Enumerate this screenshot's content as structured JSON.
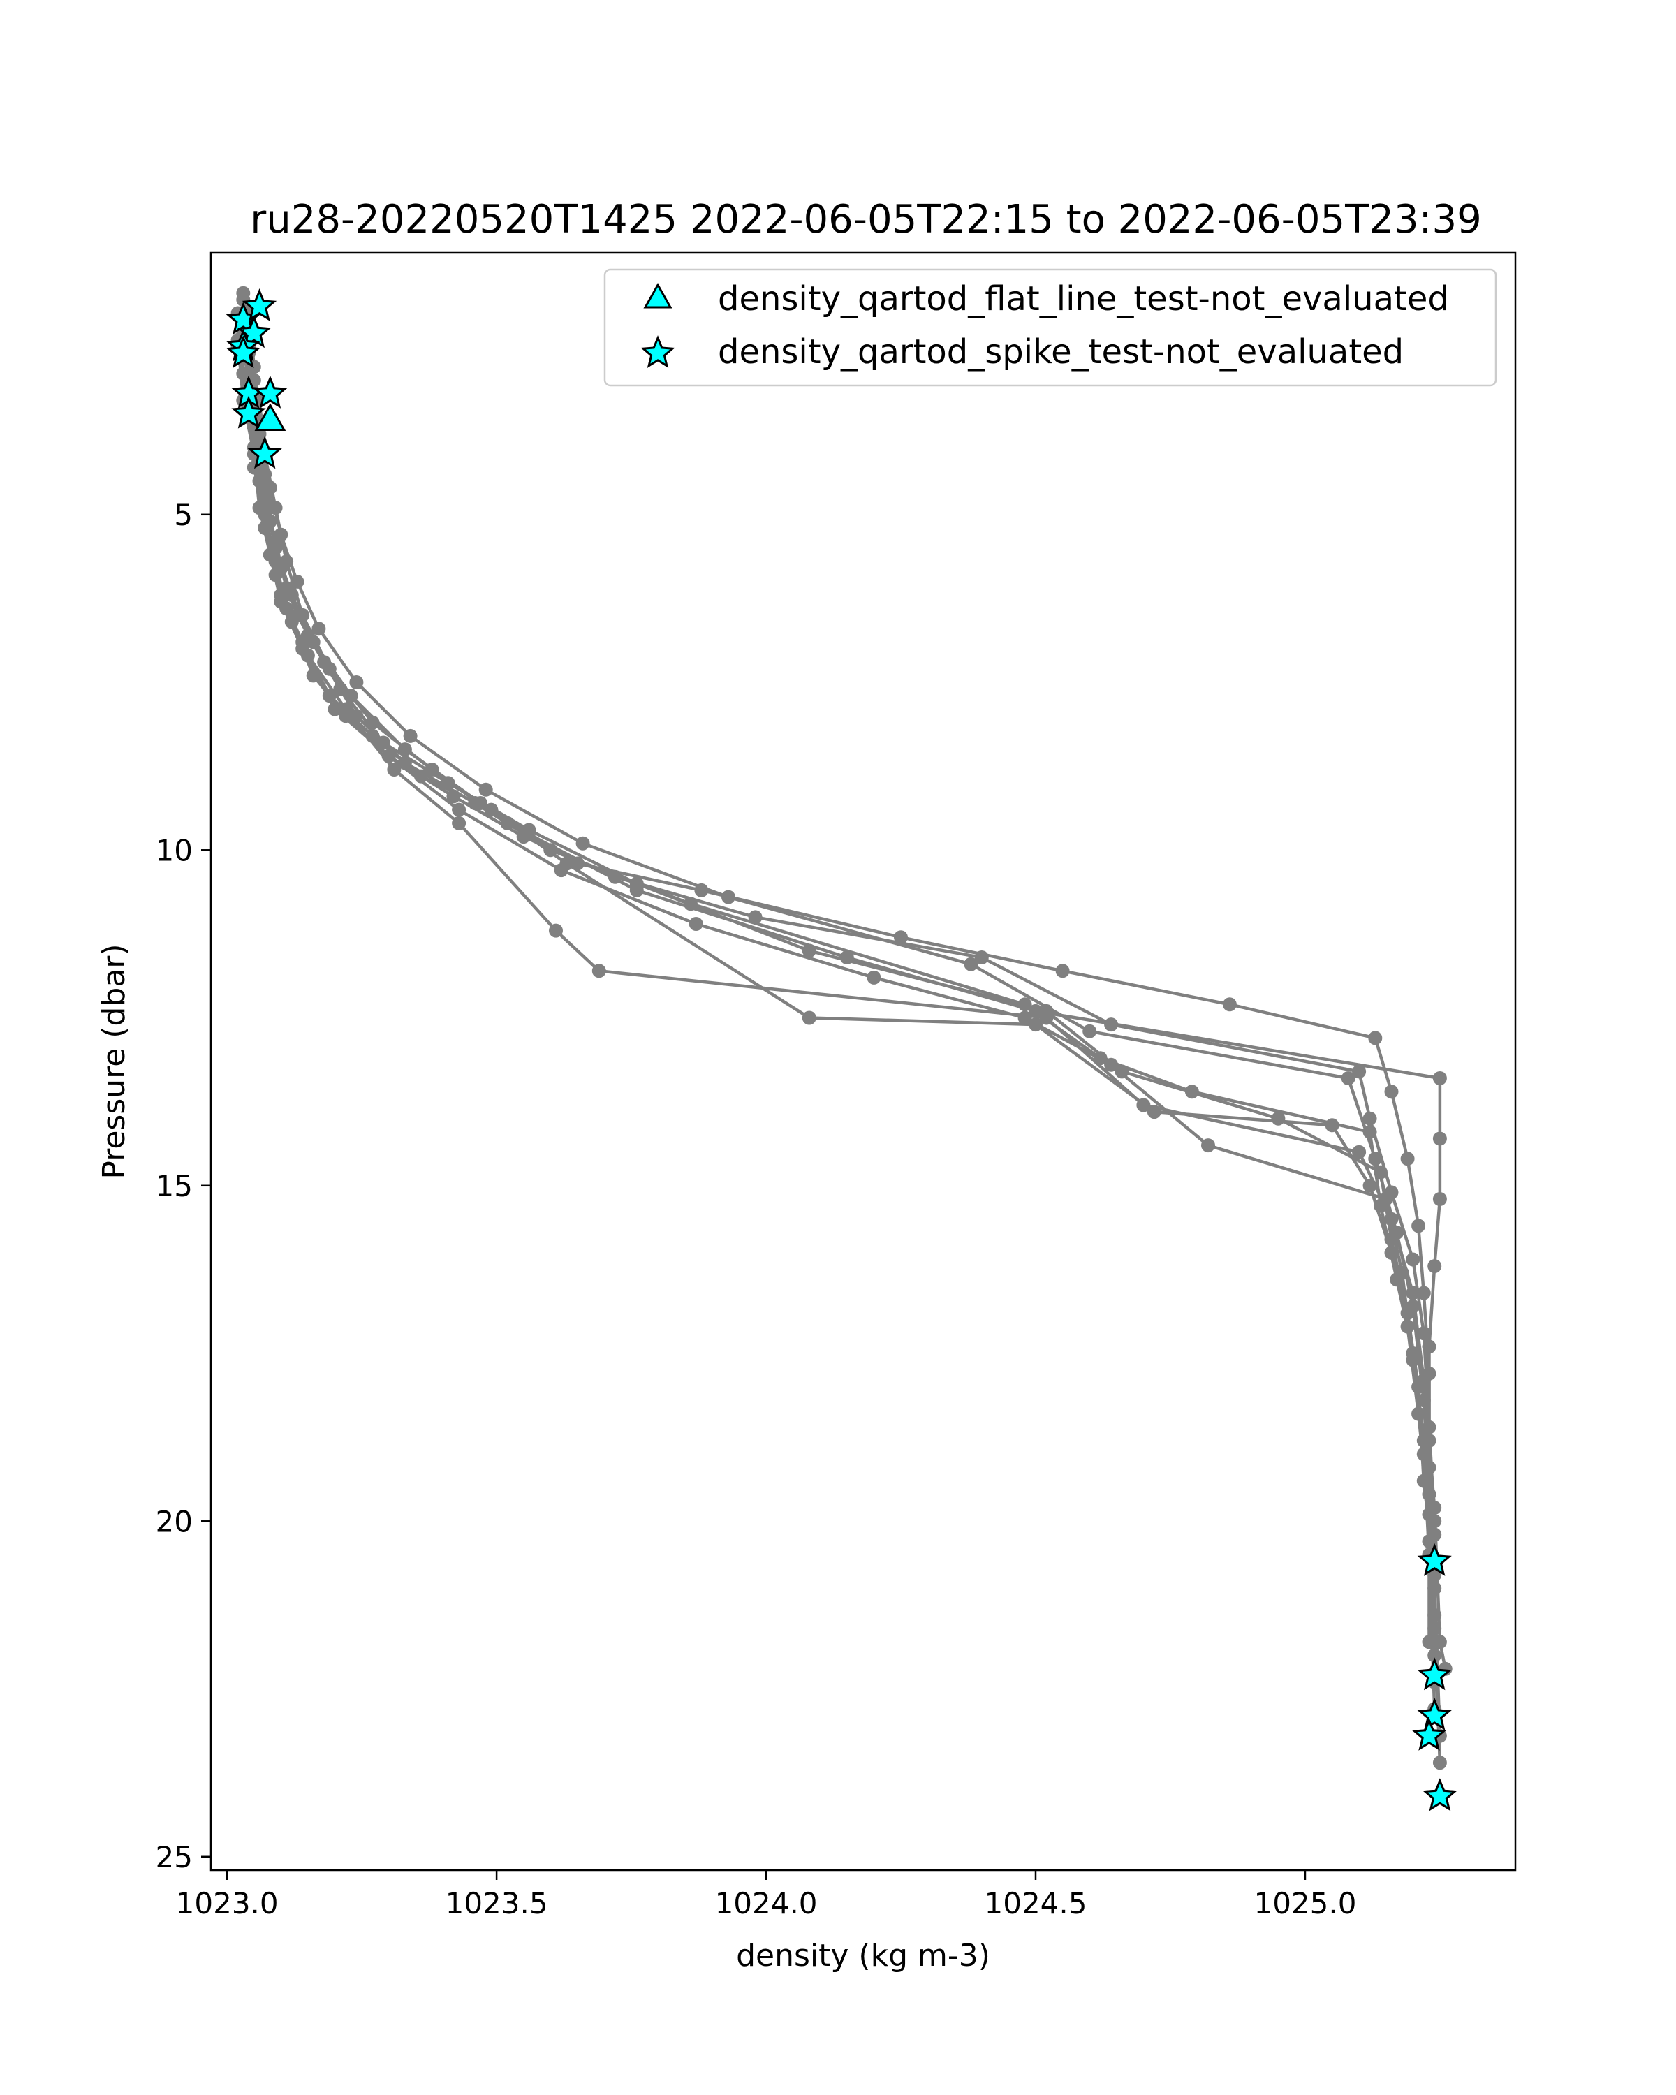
{
  "chart_data": {
    "type": "scatter",
    "title": "ru28-20220520T1425 2022-06-05T22:15 to 2022-06-05T23:39",
    "xlabel": "density (kg m-3)",
    "ylabel": "Pressure (dbar)",
    "xlim": [
      1022.97,
      1025.39
    ],
    "ylim": [
      25.2,
      1.1
    ],
    "y_inverted": true,
    "grid": false,
    "legend_position": "top-right",
    "x_ticks": [
      1023.0,
      1023.5,
      1024.0,
      1024.5,
      1025.0
    ],
    "x_tick_labels": [
      "1023.0",
      "1023.5",
      "1024.0",
      "1024.5",
      "1025.0"
    ],
    "y_ticks": [
      5,
      10,
      15,
      20,
      25
    ],
    "y_tick_labels": [
      "5",
      "10",
      "15",
      "20",
      "25"
    ],
    "colors": {
      "profile": "#808080",
      "marker_fill": "#00ffff",
      "marker_edge": "#000000"
    },
    "profiles": [
      {
        "x": [
          1023.03,
          1023.04,
          1023.05,
          1023.06,
          1023.07,
          1023.08,
          1023.1,
          1023.14,
          1023.19,
          1023.27,
          1023.36,
          1023.49,
          1023.65,
          1023.88,
          1024.25,
          1024.55,
          1024.86,
          1025.13,
          1025.16,
          1025.19,
          1025.21,
          1025.22,
          1025.23,
          1025.23,
          1025.24,
          1025.24
        ],
        "y": [
          1.8,
          2.6,
          3.4,
          4.2,
          5.0,
          5.6,
          6.2,
          6.9,
          7.7,
          8.3,
          8.9,
          9.4,
          10.2,
          10.6,
          11.3,
          11.8,
          12.3,
          12.8,
          13.6,
          14.6,
          15.6,
          16.6,
          17.8,
          19.2,
          20.6,
          22.0
        ]
      },
      {
        "x": [
          1023.02,
          1023.03,
          1023.05,
          1023.06,
          1023.07,
          1023.09,
          1023.12,
          1023.16,
          1023.22,
          1023.3,
          1023.42,
          1023.55,
          1023.72,
          1023.98,
          1024.4,
          1024.64,
          1025.1,
          1025.12,
          1025.16,
          1025.2,
          1025.22,
          1025.23,
          1025.24,
          1025.24
        ],
        "y": [
          2.0,
          2.9,
          3.7,
          4.5,
          5.2,
          5.9,
          6.6,
          7.4,
          8.0,
          8.6,
          9.2,
          9.8,
          10.4,
          11.0,
          11.6,
          12.6,
          13.3,
          14.0,
          15.1,
          16.1,
          17.2,
          18.6,
          20.0,
          21.4
        ]
      },
      {
        "x": [
          1023.04,
          1023.05,
          1023.06,
          1023.07,
          1023.08,
          1023.1,
          1023.13,
          1023.18,
          1023.24,
          1023.33,
          1023.46,
          1023.6,
          1023.86,
          1024.48,
          1024.62,
          1024.79,
          1025.12,
          1025.14,
          1025.17,
          1025.2,
          1025.22,
          1025.23,
          1025.23
        ],
        "y": [
          1.9,
          2.8,
          3.6,
          4.4,
          5.1,
          5.8,
          6.5,
          7.2,
          8.0,
          8.7,
          9.3,
          10.0,
          10.8,
          12.3,
          13.1,
          13.6,
          14.2,
          15.3,
          16.4,
          17.5,
          18.8,
          20.3,
          21.8
        ]
      },
      {
        "x": [
          1023.03,
          1023.04,
          1023.06,
          1023.07,
          1023.09,
          1023.11,
          1023.15,
          1023.21,
          1023.29,
          1023.41,
          1023.56,
          1023.76,
          1024.08,
          1024.52,
          1024.66,
          1024.95,
          1025.14,
          1025.16,
          1025.19,
          1025.21,
          1025.22,
          1025.24,
          1025.24
        ],
        "y": [
          2.2,
          3.1,
          3.9,
          4.7,
          5.4,
          6.1,
          6.8,
          7.6,
          8.4,
          9.0,
          9.7,
          10.5,
          11.5,
          12.4,
          13.3,
          14.0,
          14.8,
          15.8,
          16.9,
          18.0,
          19.4,
          20.8,
          22.4
        ]
      },
      {
        "x": [
          1023.02,
          1023.03,
          1023.05,
          1023.06,
          1023.08,
          1023.1,
          1023.14,
          1023.2,
          1023.3,
          1023.43,
          1023.62,
          1023.87,
          1024.2,
          1024.48,
          1024.64,
          1024.82,
          1025.15,
          1025.18,
          1025.2,
          1025.22,
          1025.23,
          1025.24
        ],
        "y": [
          2.4,
          3.3,
          4.1,
          4.9,
          5.6,
          6.3,
          7.0,
          7.9,
          8.6,
          9.4,
          10.3,
          11.1,
          11.9,
          12.5,
          13.2,
          14.4,
          15.2,
          16.3,
          17.6,
          19.0,
          20.5,
          22.8
        ]
      },
      {
        "x": [
          1023.04,
          1023.05,
          1023.06,
          1023.08,
          1023.1,
          1023.13,
          1023.17,
          1023.24,
          1023.34,
          1023.48,
          1023.66,
          1023.93,
          1024.38,
          1024.6,
          1025.08,
          1025.13,
          1025.17,
          1025.2,
          1025.22,
          1025.23,
          1025.24,
          1025.25
        ],
        "y": [
          2.1,
          3.0,
          3.8,
          4.6,
          5.3,
          6.0,
          6.7,
          7.5,
          8.3,
          9.1,
          9.9,
          10.7,
          11.7,
          12.7,
          13.4,
          14.6,
          15.7,
          16.8,
          18.2,
          19.6,
          21.0,
          23.2
        ]
      },
      {
        "x": [
          1023.03,
          1023.04,
          1023.05,
          1023.07,
          1023.09,
          1023.12,
          1023.16,
          1023.23,
          1023.33,
          1023.47,
          1023.63,
          1024.08,
          1024.5,
          1024.72,
          1025.05,
          1025.12,
          1025.16,
          1025.19,
          1025.21,
          1025.23,
          1025.24,
          1025.25
        ],
        "y": [
          2.3,
          3.2,
          4.0,
          4.8,
          5.5,
          6.2,
          6.9,
          7.7,
          8.5,
          9.3,
          10.2,
          12.5,
          12.6,
          13.9,
          14.1,
          15.0,
          16.0,
          17.1,
          18.4,
          19.9,
          21.6,
          23.6
        ]
      },
      {
        "x": [
          1023.02,
          1023.04,
          1023.05,
          1023.07,
          1023.09,
          1023.11,
          1023.15,
          1023.22,
          1023.31,
          1023.43,
          1023.61,
          1023.69,
          1024.52,
          1024.7,
          1025.1,
          1025.16,
          1025.2,
          1025.22,
          1025.24,
          1025.25,
          1025.26
        ],
        "y": [
          2.5,
          3.4,
          4.3,
          5.0,
          5.7,
          6.4,
          7.1,
          7.9,
          8.8,
          9.6,
          11.2,
          11.8,
          12.5,
          13.8,
          14.5,
          15.5,
          16.6,
          17.9,
          19.8,
          21.8,
          22.2
        ]
      },
      {
        "x": [
          1023.03,
          1023.04,
          1023.06,
          1023.07,
          1023.09,
          1023.11,
          1023.14,
          1023.19,
          1023.27,
          1023.38,
          1023.52,
          1023.76,
          1024.15,
          1024.5,
          1025.25,
          1025.25,
          1025.25,
          1025.24,
          1025.23,
          1025.23,
          1025.24
        ],
        "y": [
          1.7,
          2.5,
          3.3,
          4.1,
          4.9,
          5.7,
          6.5,
          7.3,
          8.1,
          8.8,
          9.6,
          10.6,
          11.6,
          12.4,
          13.4,
          14.3,
          15.2,
          16.2,
          17.4,
          18.8,
          20.2
        ]
      }
    ],
    "series": [
      {
        "name": "density_qartod_flat_line_test-not_evaluated",
        "marker": "triangle",
        "x": [
          1023.08
        ],
        "y": [
          3.6
        ]
      },
      {
        "name": "density_qartod_spike_test-not_evaluated",
        "marker": "star",
        "x": [
          1023.03,
          1023.05,
          1023.06,
          1023.03,
          1023.03,
          1023.04,
          1023.08,
          1023.04,
          1023.07,
          1025.24,
          1025.24,
          1025.24,
          1025.23,
          1025.25,
          1025.25
        ],
        "y": [
          2.1,
          2.3,
          1.9,
          2.5,
          2.6,
          3.2,
          3.2,
          3.5,
          4.1,
          20.6,
          22.3,
          22.9,
          23.2,
          24.1,
          24.1
        ]
      }
    ]
  }
}
